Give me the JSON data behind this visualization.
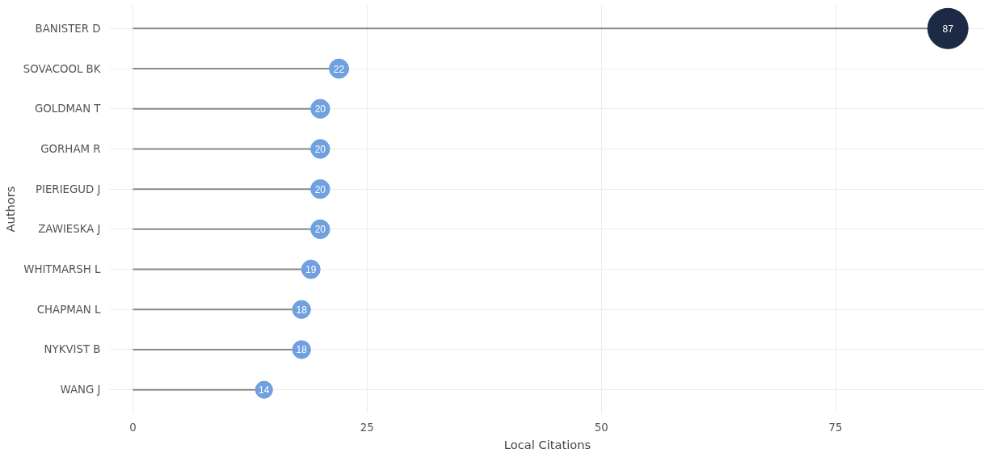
{
  "chart_data": {
    "type": "lollipop",
    "orientation": "horizontal",
    "xlabel": "Local Citations",
    "ylabel": "Authors",
    "categories": [
      "BANISTER D",
      "SOVACOOL BK",
      "GOLDMAN T",
      "GORHAM R",
      "PIERIEGUD J",
      "ZAWIESKA J",
      "WHITMARSH L",
      "CHAPMAN L",
      "NYKVIST B",
      "WANG J"
    ],
    "values": [
      87,
      22,
      20,
      20,
      20,
      20,
      19,
      18,
      18,
      14
    ],
    "sizes": [
      1,
      0.23,
      0.22,
      0.22,
      0.22,
      0.22,
      0.21,
      0.2,
      0.2,
      0.18
    ],
    "colors": [
      "#1c2a45",
      "#6fa0e0",
      "#6fa0e0",
      "#6fa0e0",
      "#6fa0e0",
      "#6fa0e0",
      "#6fa0e0",
      "#6fa0e0",
      "#6fa0e0",
      "#6fa0e0"
    ],
    "xlim": [
      -2.5,
      91
    ],
    "xticks": [
      0,
      25,
      50,
      75
    ],
    "grid": true,
    "data_labels": true
  }
}
